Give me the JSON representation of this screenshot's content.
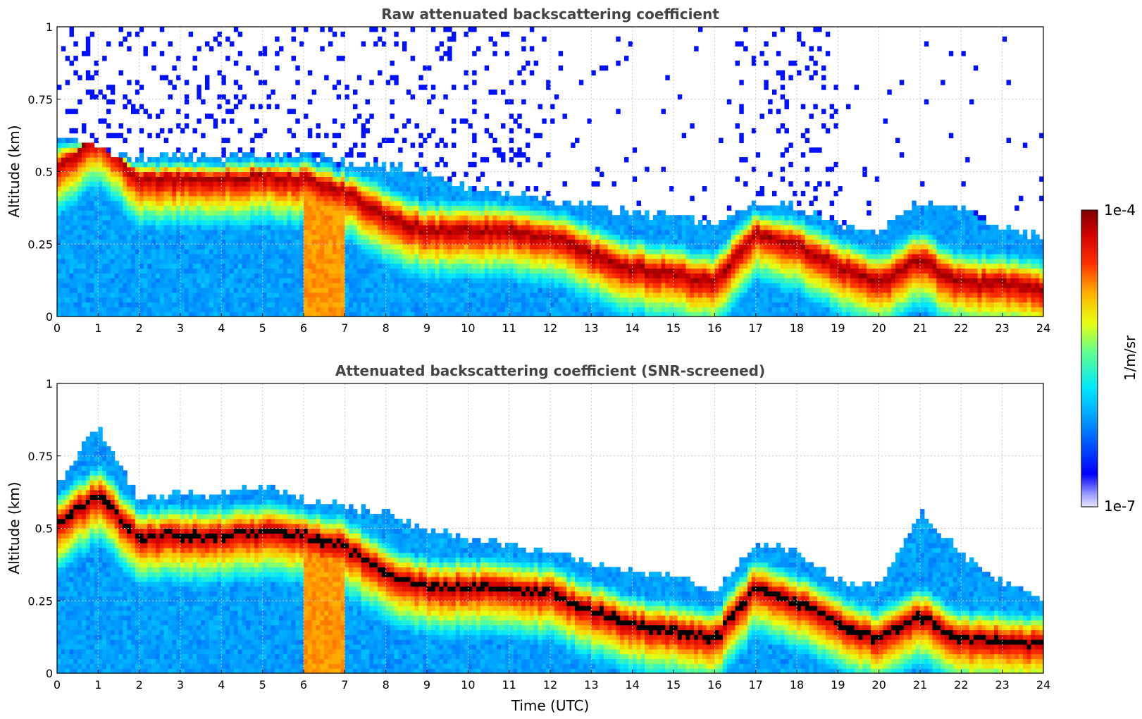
{
  "chart_data": [
    {
      "type": "heatmap",
      "title": "Raw attenuated backscattering coefficient",
      "xlabel": "",
      "ylabel": "Altitude (km)",
      "xlim": [
        0,
        24
      ],
      "ylim": [
        0,
        1
      ],
      "x_ticks": [
        0,
        1,
        2,
        3,
        4,
        5,
        6,
        7,
        8,
        9,
        10,
        11,
        12,
        13,
        14,
        15,
        16,
        17,
        18,
        19,
        20,
        21,
        22,
        23,
        24
      ],
      "x_tick_labels": [
        "0",
        "1",
        "2",
        "3",
        "4",
        "5",
        "6",
        "7",
        "8",
        "9",
        "10",
        "11",
        "12",
        "13",
        "14",
        "15",
        "16",
        "17",
        "18",
        "19",
        "20",
        "21",
        "22",
        "23",
        "24"
      ],
      "y_ticks": [
        0,
        0.25,
        0.5,
        0.75,
        1
      ],
      "y_tick_labels": [
        "0",
        "0.25",
        "0.5",
        "0.75",
        "1"
      ],
      "grid": true,
      "screened": false,
      "layer_top_km": [
        0.62,
        0.58,
        0.55,
        0.55,
        0.55,
        0.56,
        0.56,
        0.53,
        0.52,
        0.5,
        0.45,
        0.42,
        0.4,
        0.38,
        0.36,
        0.35,
        0.32,
        0.4,
        0.38,
        0.32,
        0.3,
        0.4,
        0.38,
        0.3,
        0.28
      ],
      "peak_center_km": [
        0.52,
        0.62,
        0.48,
        0.48,
        0.48,
        0.49,
        0.48,
        0.44,
        0.35,
        0.3,
        0.3,
        0.3,
        0.28,
        0.22,
        0.17,
        0.15,
        0.12,
        0.3,
        0.25,
        0.18,
        0.12,
        0.2,
        0.12,
        0.12,
        0.1
      ]
    },
    {
      "type": "heatmap",
      "title": "Attenuated backscattering coefficient (SNR-screened)",
      "xlabel": "Time (UTC)",
      "ylabel": "Altitude (km)",
      "xlim": [
        0,
        24
      ],
      "ylim": [
        0,
        1
      ],
      "x_ticks": [
        0,
        1,
        2,
        3,
        4,
        5,
        6,
        7,
        8,
        9,
        10,
        11,
        12,
        13,
        14,
        15,
        16,
        17,
        18,
        19,
        20,
        21,
        22,
        23,
        24
      ],
      "x_tick_labels": [
        "0",
        "1",
        "2",
        "3",
        "4",
        "5",
        "6",
        "7",
        "8",
        "9",
        "10",
        "11",
        "12",
        "13",
        "14",
        "15",
        "16",
        "17",
        "18",
        "19",
        "20",
        "21",
        "22",
        "23",
        "24"
      ],
      "y_ticks": [
        0,
        0.25,
        0.5,
        0.75,
        1
      ],
      "y_tick_labels": [
        "0",
        "0.25",
        "0.5",
        "0.75",
        "1"
      ],
      "grid": true,
      "screened": true,
      "layer_top_km": [
        0.65,
        0.85,
        0.6,
        0.62,
        0.62,
        0.65,
        0.6,
        0.58,
        0.55,
        0.5,
        0.46,
        0.45,
        0.42,
        0.38,
        0.35,
        0.33,
        0.28,
        0.45,
        0.42,
        0.32,
        0.3,
        0.55,
        0.42,
        0.32,
        0.25
      ],
      "peak_center_km": [
        0.52,
        0.62,
        0.48,
        0.48,
        0.48,
        0.49,
        0.48,
        0.44,
        0.35,
        0.3,
        0.3,
        0.3,
        0.28,
        0.22,
        0.17,
        0.15,
        0.12,
        0.3,
        0.25,
        0.18,
        0.12,
        0.2,
        0.12,
        0.12,
        0.1
      ]
    }
  ],
  "colorbar": {
    "label": "1/m/sr",
    "max_label": "1e-4",
    "min_label": "1e-7",
    "orientation": "vertical",
    "colormap": "jet"
  }
}
